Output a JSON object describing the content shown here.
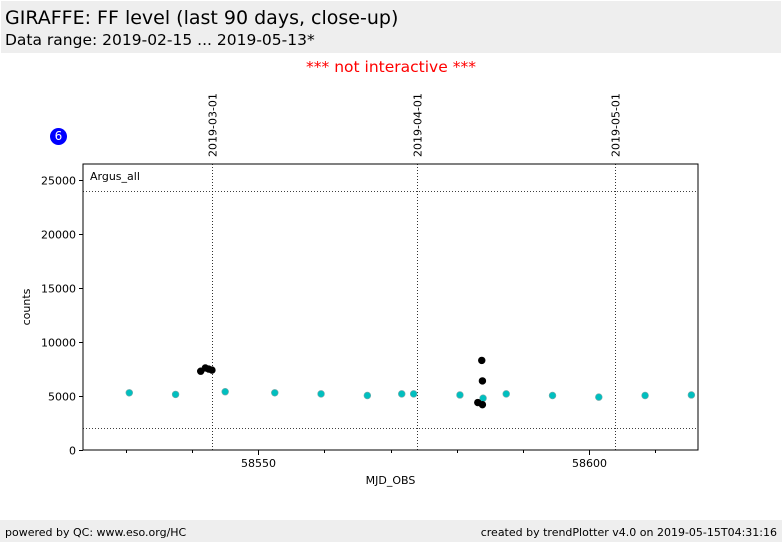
{
  "header": {
    "title": "GIRAFFE: FF level (last 90 days, close-up)",
    "subtitle": "Data range: 2019-02-15 ... 2019-05-13*"
  },
  "notice": "*** not interactive ***",
  "badge": "6",
  "footer": {
    "left": "powered by QC: www.eso.org/HC",
    "right": "created by trendPlotter v4.0 on 2019-05-15T04:31:16"
  },
  "colors": {
    "primary": "#00bfbf",
    "secondary": "#000000",
    "notice": "#ff0000",
    "badge": "#0000ff"
  },
  "chart_data": {
    "type": "scatter",
    "xlabel": "MJD_OBS",
    "ylabel": "counts",
    "annotation": "Argus_all",
    "xlim": [
      58523.5,
      58616.5
    ],
    "ylim": [
      0,
      26500
    ],
    "x_ticks": [
      58550,
      58600
    ],
    "x_minor_ticks": [
      58530,
      58540,
      58560,
      58570,
      58580,
      58590,
      58610
    ],
    "y_ticks": [
      0,
      5000,
      10000,
      15000,
      20000,
      25000
    ],
    "date_markers": [
      {
        "label": "2019-03-01",
        "x": 58543
      },
      {
        "label": "2019-04-01",
        "x": 58574
      },
      {
        "label": "2019-05-01",
        "x": 58604
      }
    ],
    "threshold_lines": [
      24000,
      2000
    ],
    "series": [
      {
        "color": "#00bfbf",
        "points": [
          [
            58530.5,
            5300
          ],
          [
            58537.5,
            5150
          ],
          [
            58545.0,
            5400
          ],
          [
            58552.5,
            5300
          ],
          [
            58559.5,
            5200
          ],
          [
            58566.5,
            5050
          ],
          [
            58571.7,
            5200
          ],
          [
            58573.5,
            5200
          ],
          [
            58580.5,
            5100
          ],
          [
            58584.0,
            4800
          ],
          [
            58587.5,
            5200
          ],
          [
            58594.5,
            5050
          ],
          [
            58601.5,
            4900
          ],
          [
            58608.5,
            5050
          ],
          [
            58615.5,
            5100
          ]
        ]
      },
      {
        "color": "#000000",
        "points": [
          [
            58541.3,
            7300
          ],
          [
            58542.0,
            7600
          ],
          [
            58542.5,
            7500
          ],
          [
            58543.0,
            7400
          ],
          [
            58583.8,
            8300
          ],
          [
            58583.9,
            6400
          ],
          [
            58583.2,
            4400
          ],
          [
            58583.9,
            4200
          ]
        ]
      }
    ]
  }
}
